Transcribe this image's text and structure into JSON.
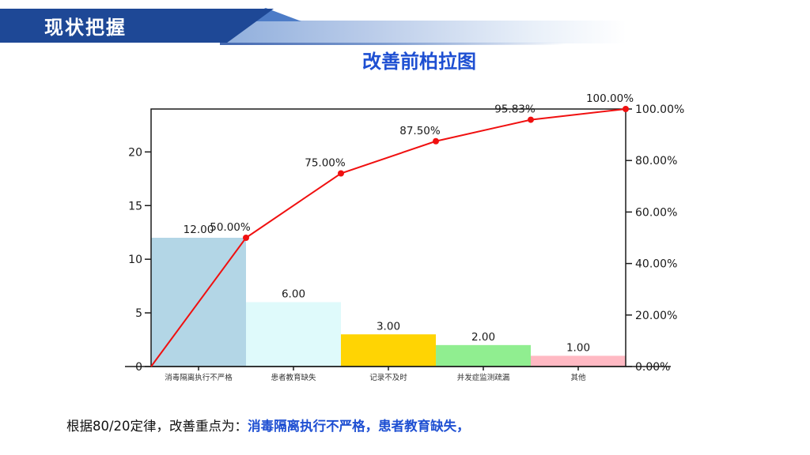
{
  "header": {
    "title": "现状把握"
  },
  "slide_title": "改善前柏拉图",
  "footer": {
    "prefix": "根据80/20定律，改善重点为：",
    "highlight": "消毒隔离执行不严格，患者教育缺失，"
  },
  "colors": {
    "banner": "#1E4896",
    "banner_accent": "#4D7CC7",
    "slide_title": "#1E4FD2",
    "footer_highlight": "#1E4FD2",
    "axis": "#1a1a1a"
  },
  "chart_data": {
    "type": "bar+line (pareto)",
    "title": "改善前柏拉图",
    "categories": [
      "消毒隔离执行不严格",
      "患者教育缺失",
      "记录不及时",
      "并发症监测疏漏",
      "其他"
    ],
    "series": [
      {
        "name": "frequency-bars",
        "type": "bar",
        "values": [
          12,
          6,
          3,
          2,
          1
        ],
        "labels": [
          "12.00",
          "6.00",
          "3.00",
          "2.00",
          "1.00"
        ],
        "colors": [
          "#B3D6E6",
          "#DFFAFB",
          "#FFD403",
          "#90EE90",
          "#FFB9C3"
        ]
      },
      {
        "name": "cumulative-percent-line",
        "type": "line",
        "values": [
          50,
          75,
          87.5,
          95.83,
          100
        ],
        "labels": [
          "50.00%",
          "75.00%",
          "87.50%",
          "95.83%",
          "100.00%"
        ],
        "label_colors": [
          "#1a1a1a",
          "#FF0000",
          "#1a1a1a",
          "#1a1a1a",
          "#1a1a1a"
        ],
        "color": "#F01010",
        "starts_at_origin": true
      }
    ],
    "left_axis": {
      "ticks": [
        0,
        5,
        10,
        15,
        20
      ],
      "tick_labels": [
        "0",
        "5",
        "10",
        "15",
        "20"
      ],
      "range": [
        0,
        24
      ]
    },
    "right_axis": {
      "ticks": [
        0,
        20,
        40,
        60,
        80,
        100
      ],
      "tick_labels": [
        "0.00%",
        "20.00%",
        "40.00%",
        "60.00%",
        "80.00%",
        "100.00%"
      ],
      "range": [
        0,
        100
      ]
    },
    "grid": false,
    "legend": false
  }
}
